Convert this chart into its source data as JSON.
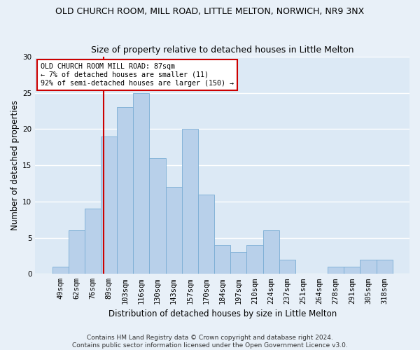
{
  "title": "OLD CHURCH ROOM, MILL ROAD, LITTLE MELTON, NORWICH, NR9 3NX",
  "subtitle": "Size of property relative to detached houses in Little Melton",
  "xlabel": "Distribution of detached houses by size in Little Melton",
  "ylabel": "Number of detached properties",
  "categories": [
    "49sqm",
    "62sqm",
    "76sqm",
    "89sqm",
    "103sqm",
    "116sqm",
    "130sqm",
    "143sqm",
    "157sqm",
    "170sqm",
    "184sqm",
    "197sqm",
    "210sqm",
    "224sqm",
    "237sqm",
    "251sqm",
    "264sqm",
    "278sqm",
    "291sqm",
    "305sqm",
    "318sqm"
  ],
  "values": [
    1,
    6,
    9,
    19,
    23,
    25,
    16,
    12,
    20,
    11,
    4,
    3,
    4,
    6,
    2,
    0,
    0,
    1,
    1,
    2,
    2
  ],
  "bar_color": "#b8d0ea",
  "bar_edge_color": "#7aadd4",
  "annotation_text": "OLD CHURCH ROOM MILL ROAD: 87sqm\n← 7% of detached houses are smaller (11)\n92% of semi-detached houses are larger (150) →",
  "annotation_box_color": "#ffffff",
  "annotation_box_edge": "#cc0000",
  "red_line_color": "#cc0000",
  "ylim": [
    0,
    30
  ],
  "yticks": [
    0,
    5,
    10,
    15,
    20,
    25,
    30
  ],
  "footer": "Contains HM Land Registry data © Crown copyright and database right 2024.\nContains public sector information licensed under the Open Government Licence v3.0.",
  "title_fontsize": 9,
  "subtitle_fontsize": 9,
  "xlabel_fontsize": 8.5,
  "ylabel_fontsize": 8.5,
  "tick_fontsize": 7.5,
  "footer_fontsize": 6.5,
  "bg_color": "#dce9f5",
  "fig_color": "#e8f0f8",
  "grid_color": "#ffffff",
  "red_line_index": 2.65
}
